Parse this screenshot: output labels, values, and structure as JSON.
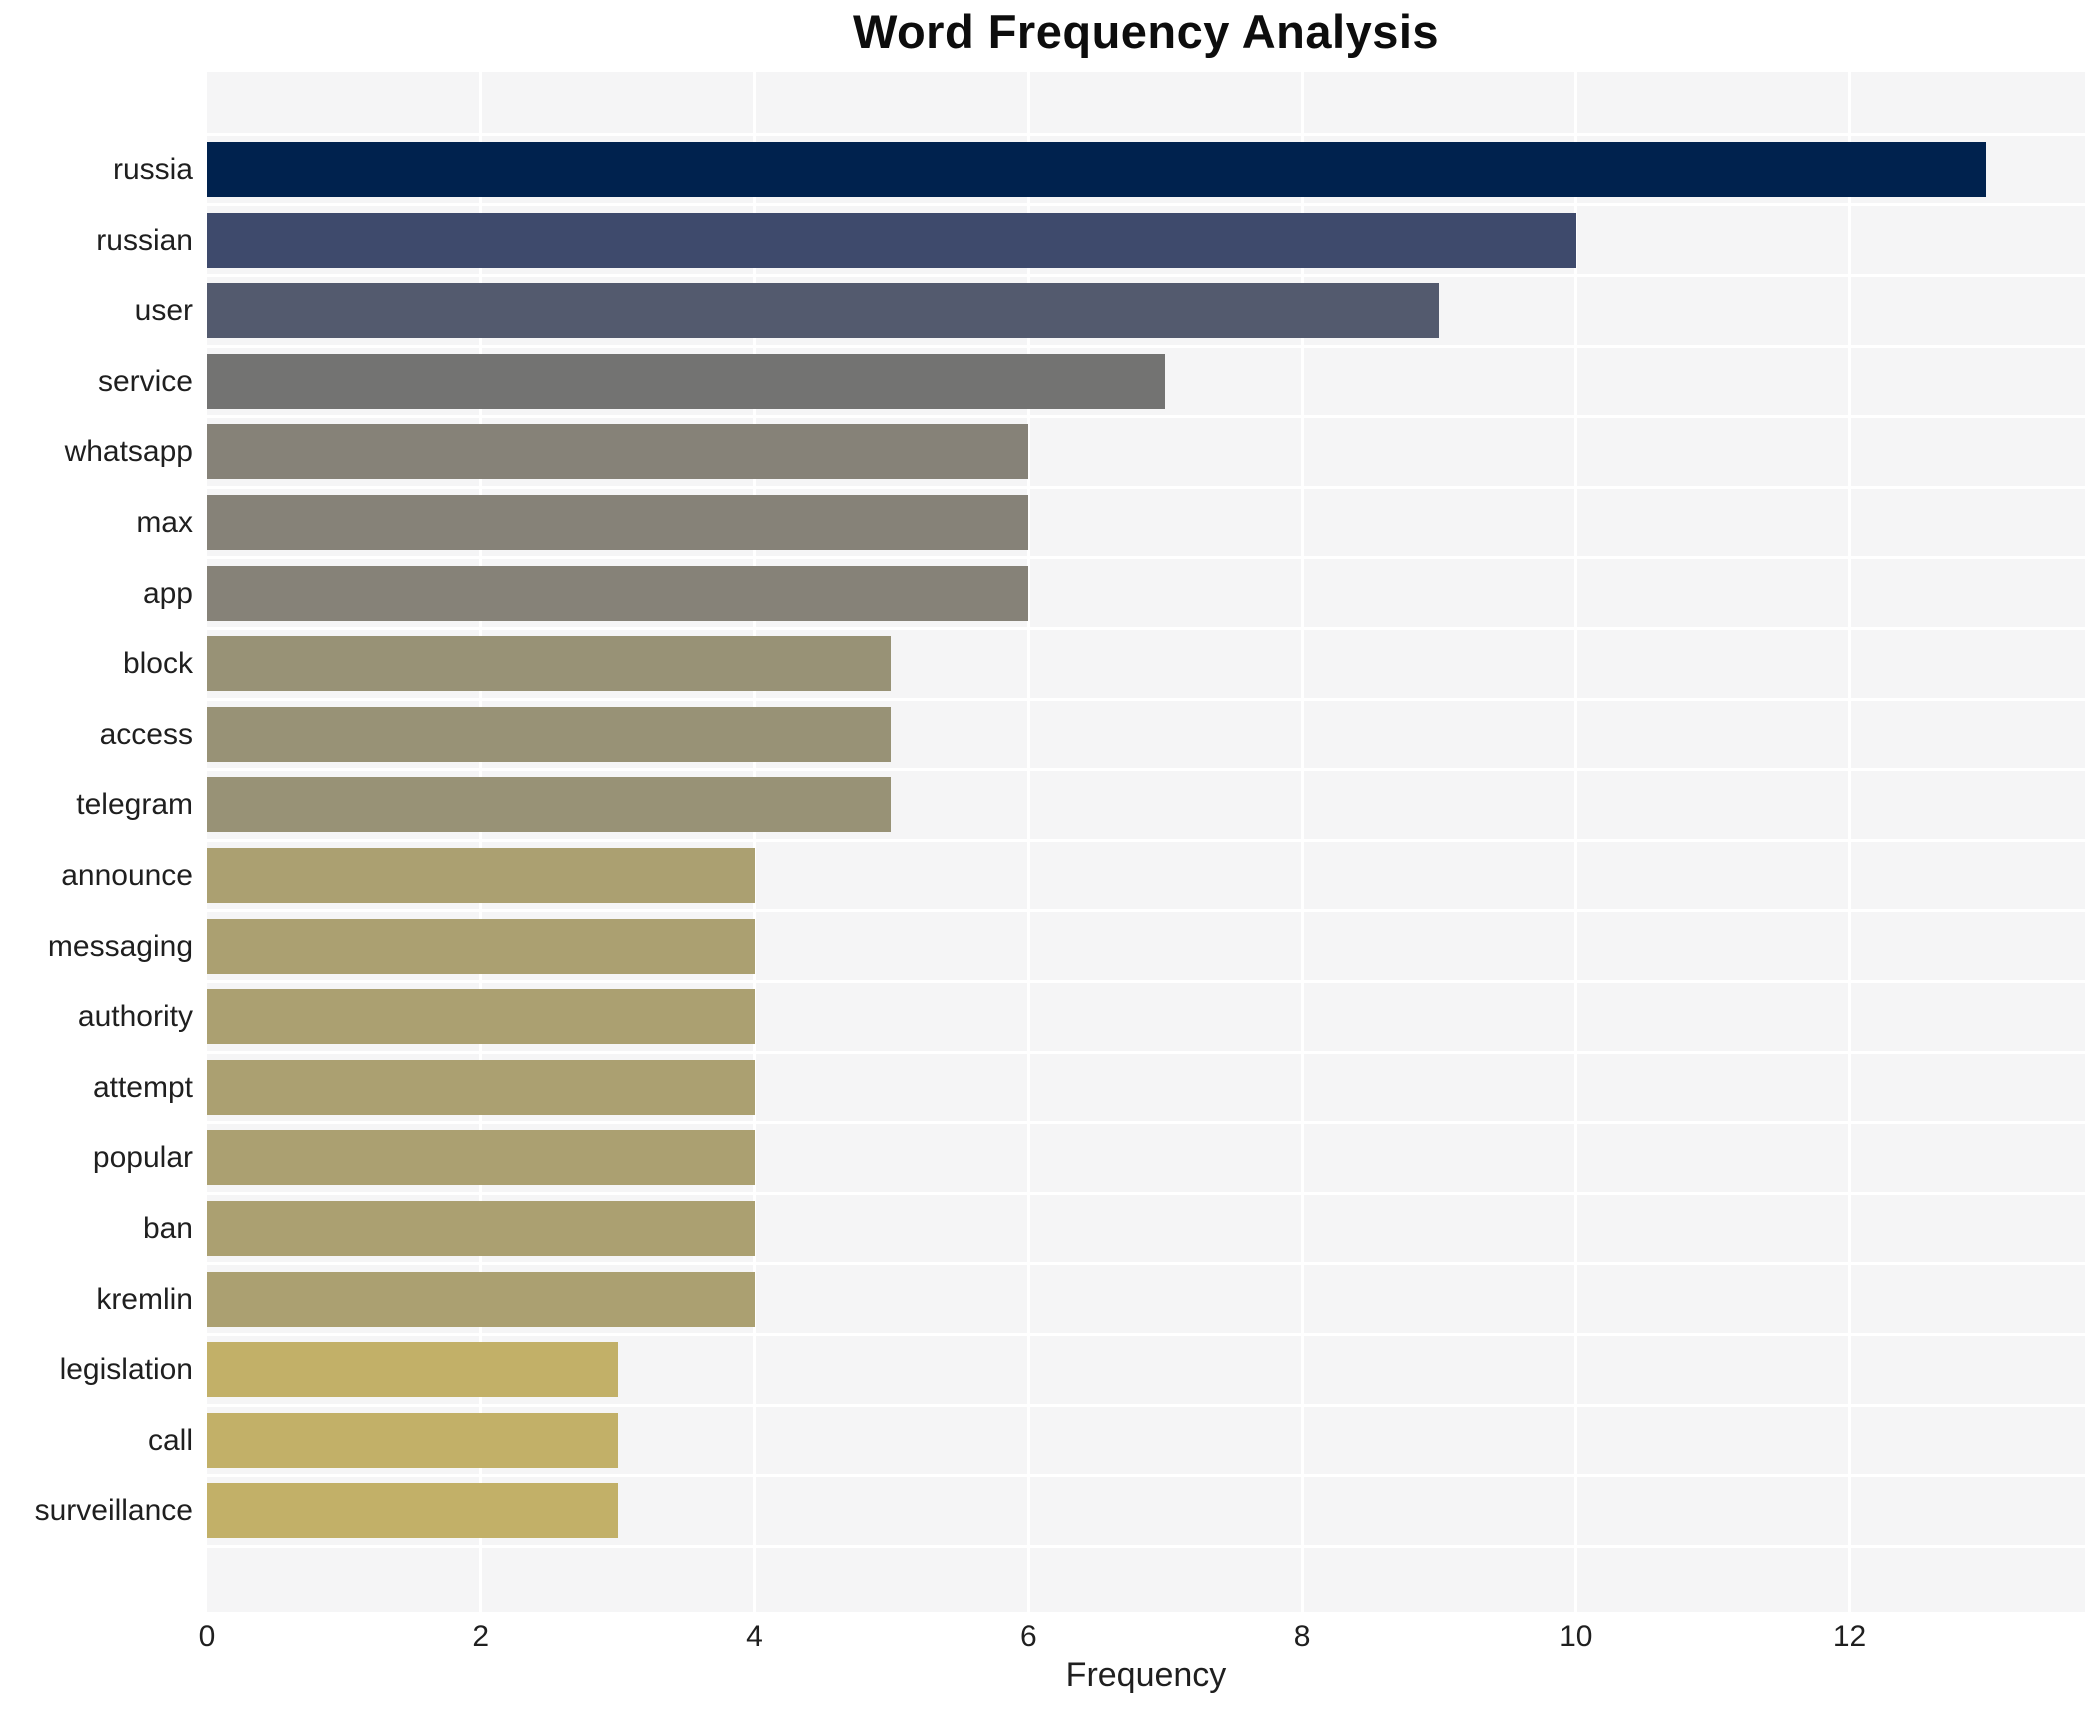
{
  "title": "Word Frequency Analysis",
  "chart_data": {
    "type": "bar",
    "orientation": "horizontal",
    "title": "Word Frequency Analysis",
    "xlabel": "Frequency",
    "ylabel": "",
    "categories": [
      "russia",
      "russian",
      "user",
      "service",
      "whatsapp",
      "max",
      "app",
      "block",
      "access",
      "telegram",
      "announce",
      "messaging",
      "authority",
      "attempt",
      "popular",
      "ban",
      "kremlin",
      "legislation",
      "call",
      "surveillance"
    ],
    "values": [
      13,
      10,
      9,
      7,
      6,
      6,
      6,
      5,
      5,
      5,
      4,
      4,
      4,
      4,
      4,
      4,
      4,
      3,
      3,
      3
    ],
    "x_ticks": [
      0,
      2,
      4,
      6,
      8,
      10,
      12
    ],
    "xlim": [
      0,
      13.72
    ],
    "grid": "white gridlines on light-gray panel",
    "legend_position": "none",
    "panel_bg_color": "#f5f5f6",
    "gridline_color": "#ffffff",
    "title_color": "#0d0d0d",
    "tick_label_color": "#1f1f1f",
    "bar_colors_by_value": {
      "13": "#00224e",
      "10": "#3e4a6c",
      "9": "#535a6e",
      "7": "#737372",
      "6": "#868278",
      "5": "#989276",
      "4": "#aba071",
      "3": "#c2b068"
    }
  }
}
